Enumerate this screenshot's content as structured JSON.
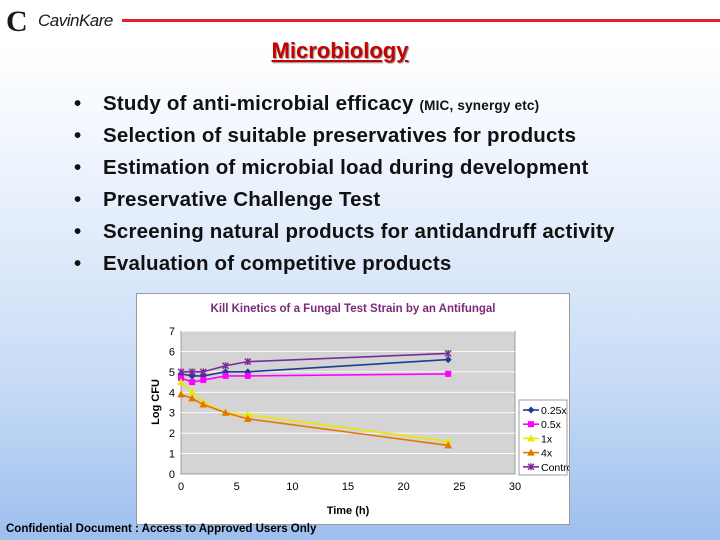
{
  "header": {
    "logo_text": "CavinKare",
    "logo_icon": "ck-logo-icon",
    "accent_color": "#e8202a"
  },
  "slide": {
    "title": "Microbiology",
    "bullets": [
      {
        "text": "Study of anti-microbial efficacy ",
        "note": "(MIC, synergy etc)"
      },
      {
        "text": "Selection of suitable preservatives for products",
        "note": ""
      },
      {
        "text": "Estimation of microbial load during development",
        "note": ""
      },
      {
        "text": "Preservative Challenge Test",
        "note": ""
      },
      {
        "text": "Screening natural products for antidandruff activity",
        "note": ""
      },
      {
        "text": "Evaluation of competitive products",
        "note": ""
      }
    ]
  },
  "chart_data": {
    "type": "line",
    "title": "Kill Kinetics of a Fungal Test Strain by an Antifungal",
    "xlabel": "Time (h)",
    "ylabel": "Log CFU",
    "xlim": [
      0,
      30
    ],
    "ylim": [
      0,
      7
    ],
    "xticks": [
      0,
      5,
      10,
      15,
      20,
      25,
      30
    ],
    "yticks": [
      0,
      1,
      2,
      3,
      4,
      5,
      6,
      7
    ],
    "grid": true,
    "legend_position": "right",
    "series": [
      {
        "name": "0.25x",
        "color": "#1f3d8f",
        "marker": "diamond",
        "points": [
          [
            0,
            4.9
          ],
          [
            1,
            4.8
          ],
          [
            2,
            4.8
          ],
          [
            4,
            5.0
          ],
          [
            6,
            5.0
          ],
          [
            24,
            5.6
          ]
        ]
      },
      {
        "name": "0.5x",
        "color": "#ff00ff",
        "marker": "square",
        "points": [
          [
            0,
            4.7
          ],
          [
            1,
            4.5
          ],
          [
            2,
            4.6
          ],
          [
            4,
            4.8
          ],
          [
            6,
            4.8
          ],
          [
            24,
            4.9
          ]
        ]
      },
      {
        "name": "1x",
        "color": "#e8e800",
        "marker": "triangle",
        "points": [
          [
            0,
            4.5
          ],
          [
            1,
            4.0
          ],
          [
            2,
            3.5
          ],
          [
            4,
            3.0
          ],
          [
            6,
            2.9
          ],
          [
            24,
            1.6
          ]
        ]
      },
      {
        "name": "4x",
        "color": "#e87400",
        "marker": "triangle",
        "points": [
          [
            0,
            3.9
          ],
          [
            1,
            3.7
          ],
          [
            2,
            3.4
          ],
          [
            4,
            3.0
          ],
          [
            6,
            2.7
          ],
          [
            24,
            1.4
          ]
        ]
      },
      {
        "name": "Control",
        "color": "#7a2a9a",
        "marker": "x",
        "points": [
          [
            0,
            5.0
          ],
          [
            1,
            5.0
          ],
          [
            2,
            5.0
          ],
          [
            4,
            5.3
          ],
          [
            6,
            5.5
          ],
          [
            24,
            5.9
          ]
        ]
      }
    ]
  },
  "footer": {
    "text": "Confidential Document : Access to Approved Users Only"
  }
}
